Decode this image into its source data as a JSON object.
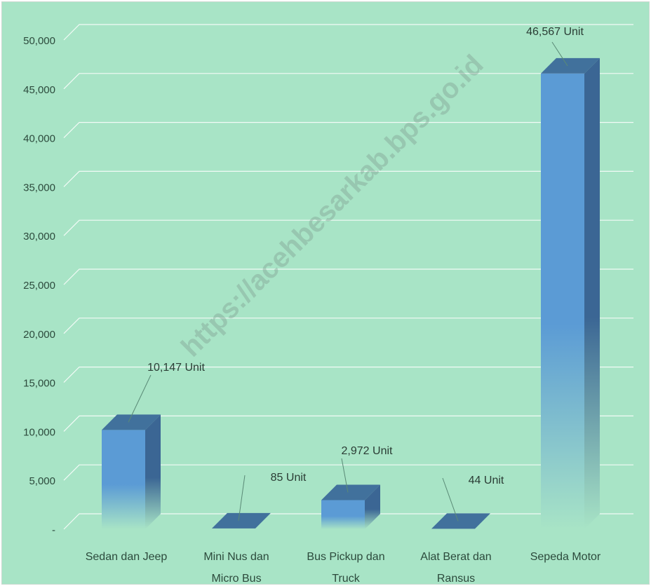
{
  "chart_data": {
    "type": "bar",
    "categories": [
      [
        "Sedan dan Jeep"
      ],
      [
        "Mini Nus dan",
        "Micro Bus"
      ],
      [
        "Bus Pickup dan",
        "Truck"
      ],
      [
        "Alat Berat dan",
        "Ransus"
      ],
      [
        "Sepeda Motor"
      ]
    ],
    "values": [
      10147,
      85,
      2972,
      44,
      46567
    ],
    "data_labels": [
      "10,147  Unit",
      "85  Unit",
      "2,972  Unit",
      "44  Unit",
      "46,567  Unit"
    ],
    "y_ticks": [
      "-",
      "5,000",
      "10,000",
      "15,000",
      "20,000",
      "25,000",
      "30,000",
      "35,000",
      "40,000",
      "45,000",
      "50,000"
    ],
    "ylim": [
      0,
      50000
    ],
    "grid": true,
    "style": "3d-column",
    "colors": {
      "front": "#5b9bd5",
      "side": "#3b6694",
      "top": "#41719c",
      "fade": "#a8e4c6",
      "grid": "#ffffff"
    }
  },
  "watermark": "https://acehbesarkab.bps.go.id"
}
